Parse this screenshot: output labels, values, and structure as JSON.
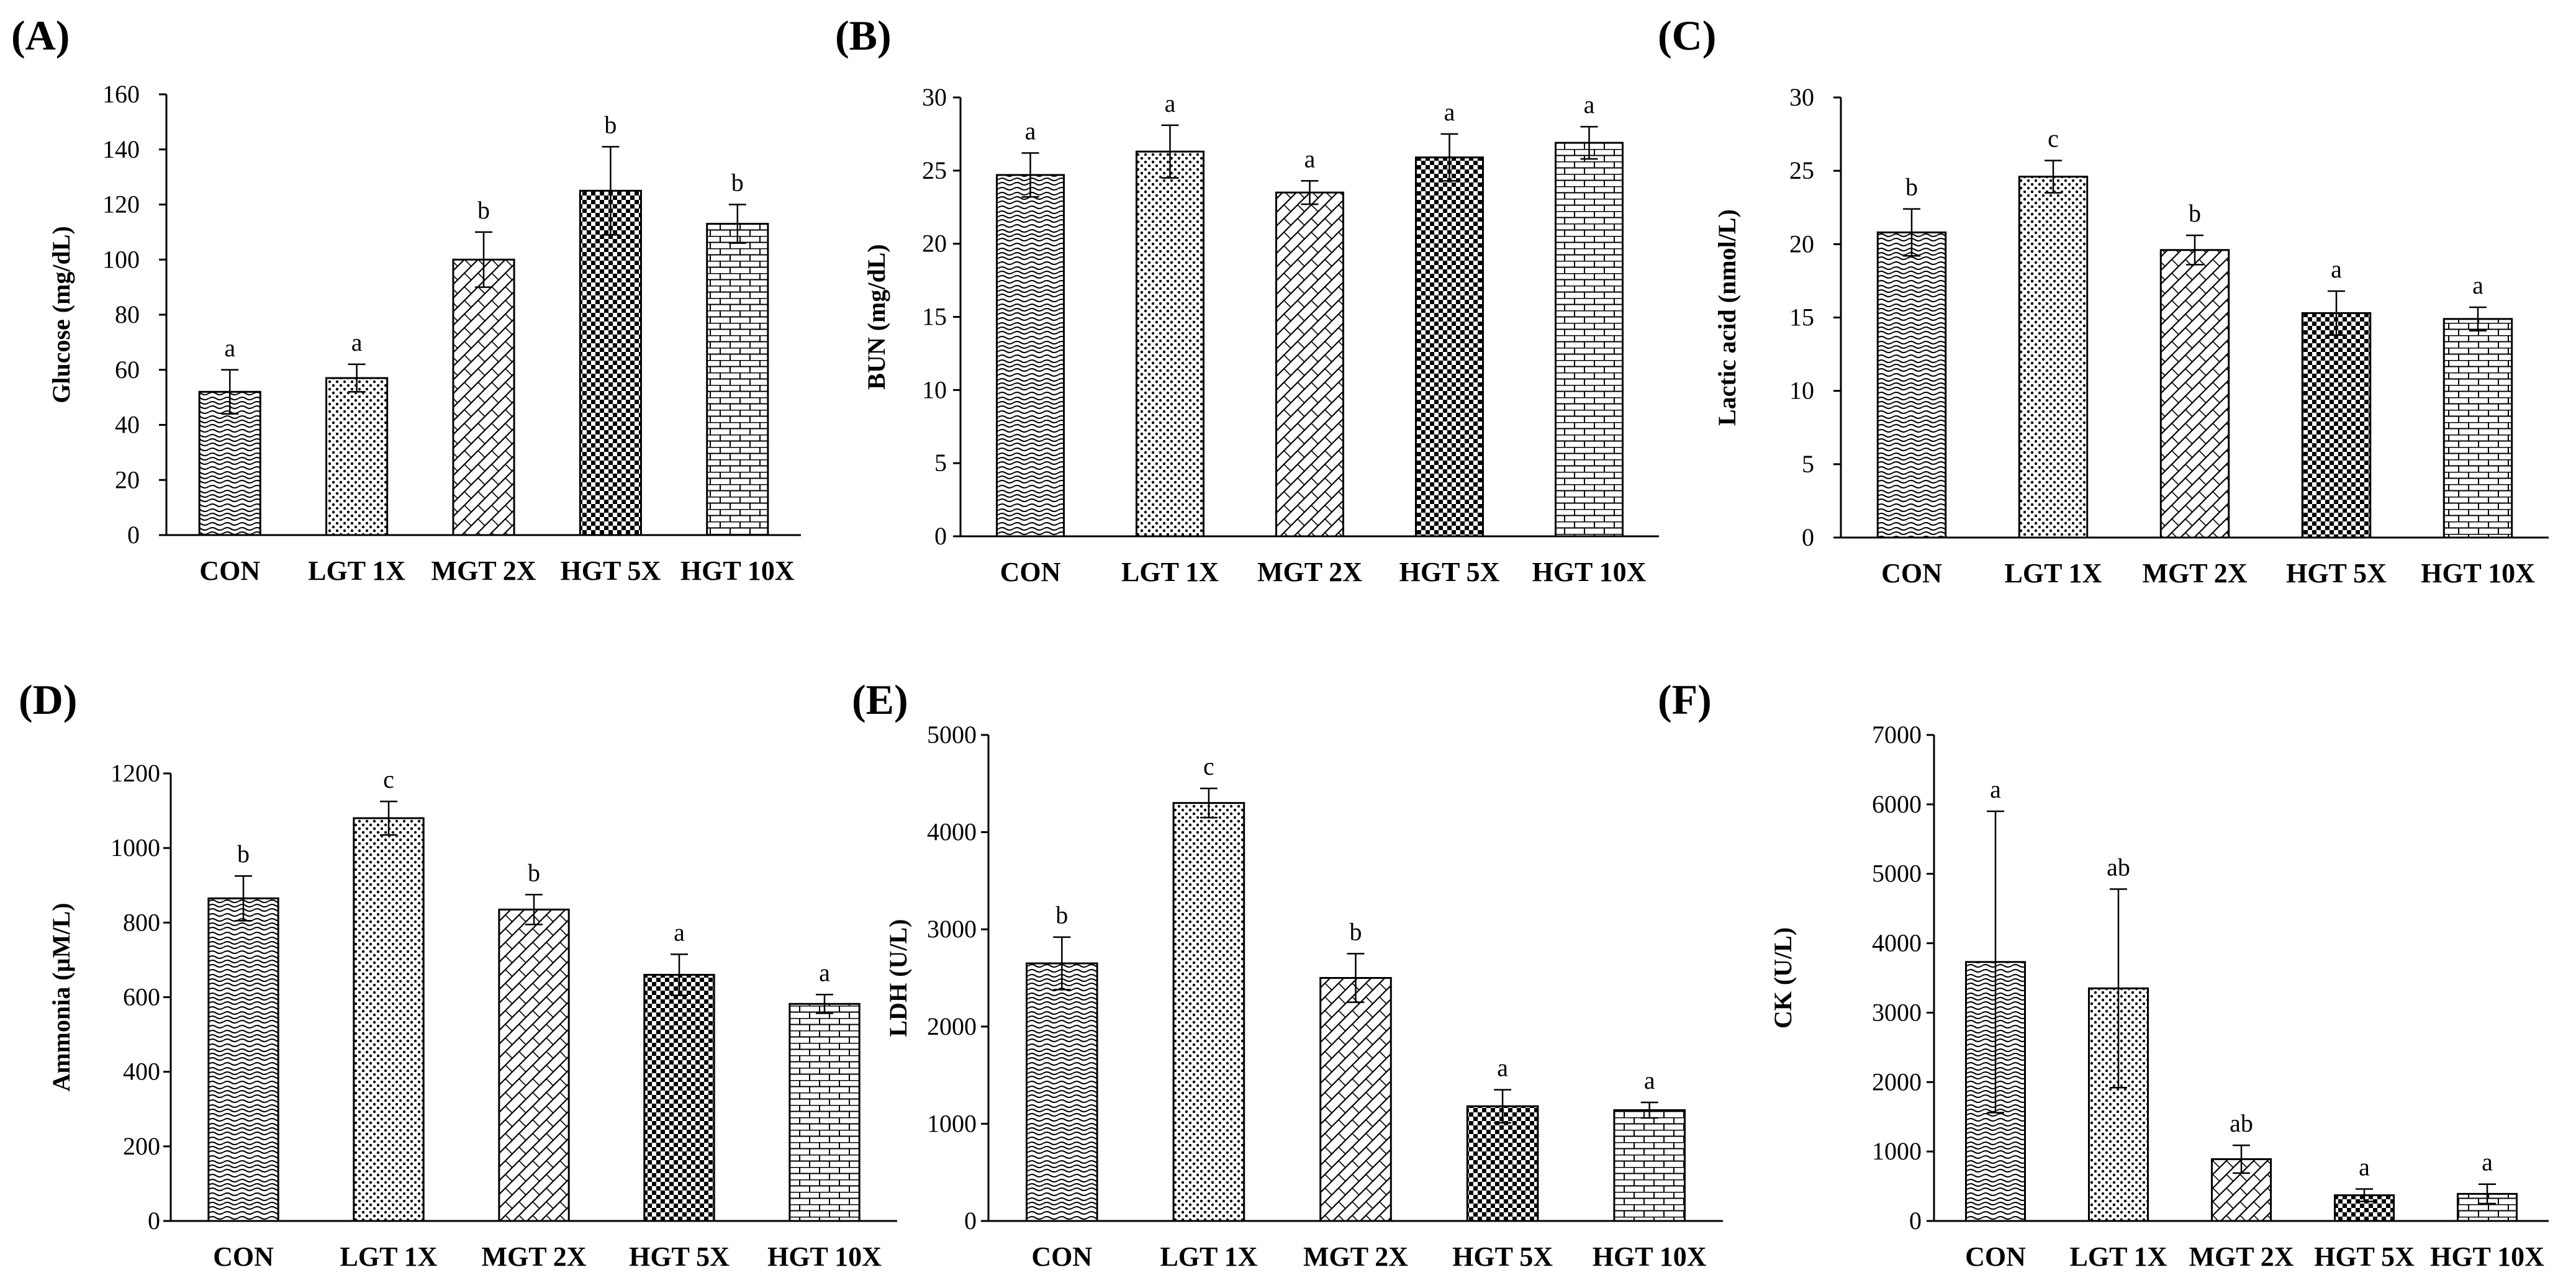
{
  "chart_data": [
    {
      "type": "bar",
      "panel_label": "(A)",
      "ylabel": "Glucose (mg/dL)",
      "categories": [
        "CON",
        "LGT 1X",
        "MGT 2X",
        "HGT 5X",
        "HGT 10X"
      ],
      "values": [
        52,
        57,
        100,
        125,
        113
      ],
      "errors": [
        8,
        5,
        10,
        16,
        7
      ],
      "significance": [
        "a",
        "a",
        "b",
        "b",
        "b"
      ],
      "ylim": [
        0,
        160
      ],
      "yticks": [
        0,
        20,
        40,
        60,
        80,
        100,
        120,
        140,
        160
      ],
      "patterns": [
        "wave",
        "dots",
        "diag",
        "check",
        "brick"
      ]
    },
    {
      "type": "bar",
      "panel_label": "(B)",
      "ylabel": "BUN (mg/dL)",
      "categories": [
        "CON",
        "LGT 1X",
        "MGT 2X",
        "HGT 5X",
        "HGT 10X"
      ],
      "values": [
        24.7,
        26.3,
        23.5,
        25.9,
        26.9
      ],
      "errors": [
        1.5,
        1.8,
        0.8,
        1.6,
        1.1
      ],
      "significance": [
        "a",
        "a",
        "a",
        "a",
        "a"
      ],
      "ylim": [
        0,
        30
      ],
      "yticks": [
        0,
        5,
        10,
        15,
        20,
        25,
        30
      ],
      "patterns": [
        "wave",
        "dots",
        "diag",
        "check",
        "brick"
      ]
    },
    {
      "type": "bar",
      "panel_label": "(C)",
      "ylabel": "Lactic acid (nmol/L)",
      "categories": [
        "CON",
        "LGT 1X",
        "MGT 2X",
        "HGT 5X",
        "HGT 10X"
      ],
      "values": [
        20.8,
        24.6,
        19.6,
        15.3,
        14.9
      ],
      "errors": [
        1.6,
        1.1,
        1.0,
        1.5,
        0.8
      ],
      "significance": [
        "b",
        "c",
        "b",
        "a",
        "a"
      ],
      "ylim": [
        0,
        30
      ],
      "yticks": [
        0,
        5,
        10,
        15,
        20,
        25,
        30
      ],
      "patterns": [
        "wave",
        "dots",
        "diag",
        "check",
        "brick"
      ]
    },
    {
      "type": "bar",
      "panel_label": "(D)",
      "ylabel": "Ammonia  (µM/L)",
      "categories": [
        "CON",
        "LGT 1X",
        "MGT 2X",
        "HGT 5X",
        "HGT 10X"
      ],
      "values": [
        865,
        1080,
        835,
        660,
        582
      ],
      "errors": [
        60,
        45,
        40,
        55,
        25
      ],
      "significance": [
        "b",
        "c",
        "b",
        "a",
        "a"
      ],
      "ylim": [
        0,
        1200
      ],
      "yticks": [
        0,
        200,
        400,
        600,
        800,
        1000,
        1200
      ],
      "patterns": [
        "wave",
        "dots",
        "diag",
        "check",
        "brick"
      ]
    },
    {
      "type": "bar",
      "panel_label": "(E)",
      "ylabel": "LDH (U/L)",
      "categories": [
        "CON",
        "LGT 1X",
        "MGT 2X",
        "HGT 5X",
        "HGT 10X"
      ],
      "values": [
        2650,
        4300,
        2500,
        1180,
        1140
      ],
      "errors": [
        270,
        150,
        250,
        170,
        80
      ],
      "significance": [
        "b",
        "c",
        "b",
        "a",
        "a"
      ],
      "ylim": [
        0,
        5000
      ],
      "yticks": [
        0,
        1000,
        2000,
        3000,
        4000,
        5000
      ],
      "patterns": [
        "wave",
        "dots",
        "diag",
        "check",
        "brick"
      ]
    },
    {
      "type": "bar",
      "panel_label": "(F)",
      "ylabel": "CK (U/L)",
      "categories": [
        "CON",
        "LGT 1X",
        "MGT 2X",
        "HGT 5X",
        "HGT 10X"
      ],
      "values": [
        3730,
        3350,
        890,
        370,
        390
      ],
      "errors": [
        2170,
        1430,
        200,
        90,
        140
      ],
      "significance": [
        "a",
        "ab",
        "ab",
        "a",
        "a"
      ],
      "ylim": [
        0,
        7000
      ],
      "yticks": [
        0,
        1000,
        2000,
        3000,
        4000,
        5000,
        6000,
        7000
      ],
      "patterns": [
        "wave",
        "dots",
        "diag",
        "check",
        "brick"
      ]
    }
  ]
}
